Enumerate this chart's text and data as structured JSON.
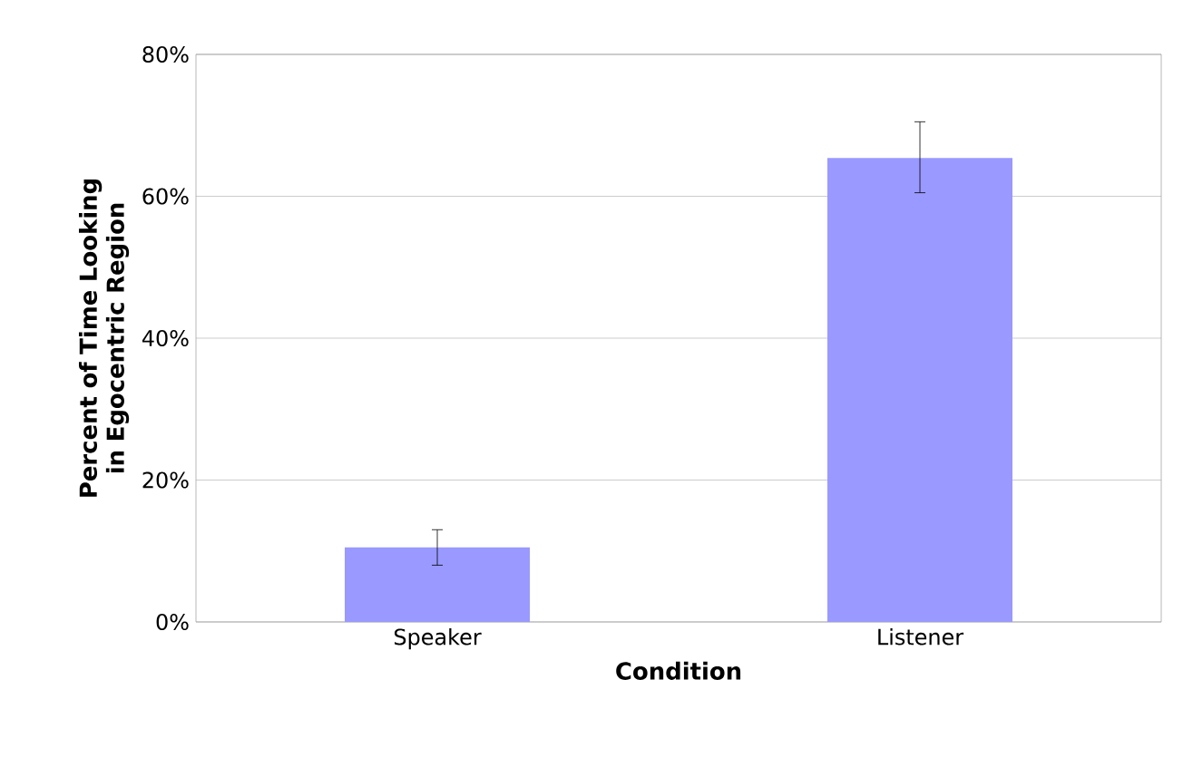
{
  "chart_data": {
    "type": "bar",
    "xlabel": "Condition",
    "ylabel": "Percent of Time Looking in Egocentric Region",
    "categories": [
      "Speaker",
      "Listener"
    ],
    "values": [
      10.5,
      65.4
    ],
    "errors": [
      [
        8,
        13
      ],
      [
        60.5,
        70.5
      ]
    ],
    "color": "#9999ff",
    "ylim": [
      0,
      80
    ],
    "yticks": [
      {
        "value": 0,
        "label": "0%"
      },
      {
        "value": 20,
        "label": "20%"
      },
      {
        "value": 40,
        "label": "40%"
      },
      {
        "value": 60,
        "label": "60%"
      },
      {
        "value": 80,
        "label": "80%"
      }
    ],
    "grid": "y"
  }
}
